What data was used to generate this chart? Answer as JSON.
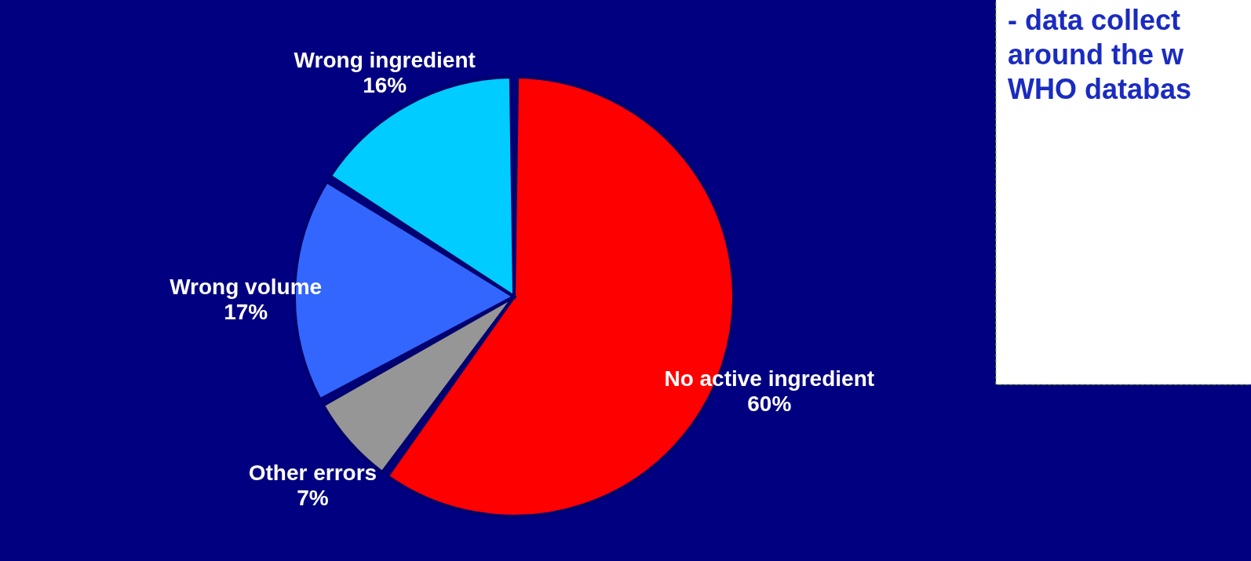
{
  "chart_data": {
    "type": "pie",
    "categories": [
      "No active ingredient",
      "Other errors",
      "Wrong volume",
      "Wrong ingredient"
    ],
    "values": [
      60,
      7,
      17,
      16
    ],
    "colors": [
      "#ff0000",
      "#969696",
      "#3366ff",
      "#00ccff"
    ],
    "value_labels": [
      "60%",
      "7%",
      "17%",
      "16%"
    ],
    "annotations": [
      "- data collect\naround the w\nWHO databas"
    ]
  }
}
